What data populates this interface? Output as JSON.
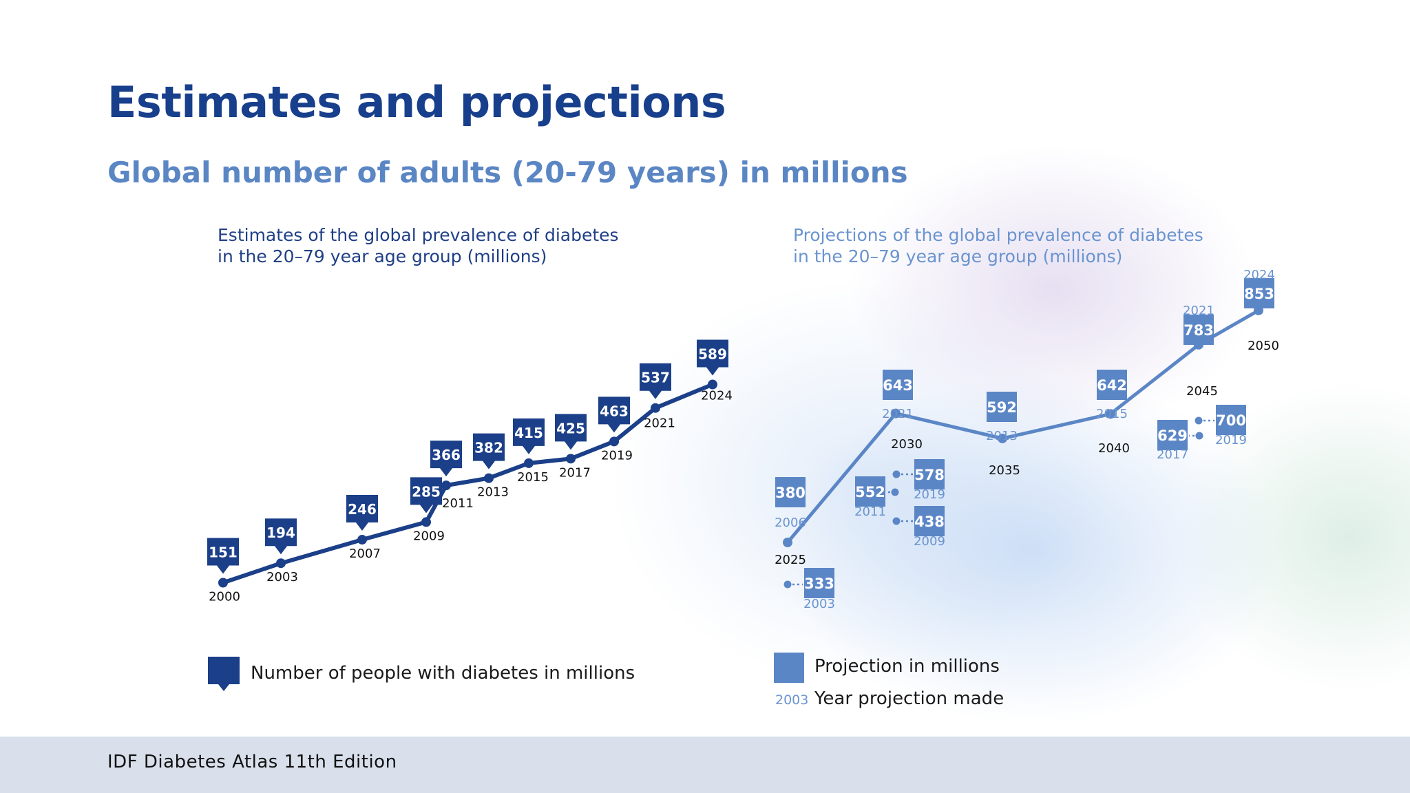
{
  "title": "Estimates and projections",
  "subtitle": "Global number of adults (20-79 years) in millions",
  "footer": "IDF Diabetes Atlas 11th Edition",
  "colors": {
    "estimate": "#1b3f88",
    "projection": "#5b86c6",
    "projection_label": "#6a94cf"
  },
  "legend": {
    "estimate": "Number of people with diabetes in millions",
    "projection": "Projection in millions",
    "year_sample": "2003",
    "year": "Year projection made"
  },
  "chart_data": [
    {
      "type": "line",
      "title_line1": "Estimates of the global prevalence of diabetes",
      "title_line2": "in the 20–79 year age group (millions)",
      "series": [
        {
          "name": "Number of people with diabetes in millions",
          "x": [
            "2000",
            "2003",
            "2007",
            "2009",
            "2011",
            "2013",
            "2015",
            "2017",
            "2019",
            "2021",
            "2024"
          ],
          "values": [
            151,
            194,
            246,
            285,
            366,
            382,
            415,
            425,
            463,
            537,
            589
          ]
        }
      ]
    },
    {
      "type": "line",
      "title_line1": "Projections of the global prevalence of diabetes",
      "title_line2": "in the 20–79 year age group (millions)",
      "series": [
        {
          "name": "Projection in millions",
          "x": [
            "2025",
            "2030",
            "2035",
            "2040",
            "2045",
            "2050"
          ],
          "values": [
            380,
            643,
            592,
            642,
            783,
            853
          ],
          "year_made": [
            "2006",
            "2021",
            "2013",
            "2015",
            "2021",
            "2024"
          ]
        }
      ],
      "other_projections": [
        {
          "target": "2025",
          "value": 333,
          "year_made": "2003"
        },
        {
          "target": "2030",
          "value": 552,
          "year_made": "2011"
        },
        {
          "target": "2030",
          "value": 578,
          "year_made": "2019"
        },
        {
          "target": "2030",
          "value": 438,
          "year_made": "2009"
        },
        {
          "target": "2045",
          "value": 629,
          "year_made": "2017"
        },
        {
          "target": "2045",
          "value": 700,
          "year_made": "2019"
        }
      ]
    }
  ]
}
